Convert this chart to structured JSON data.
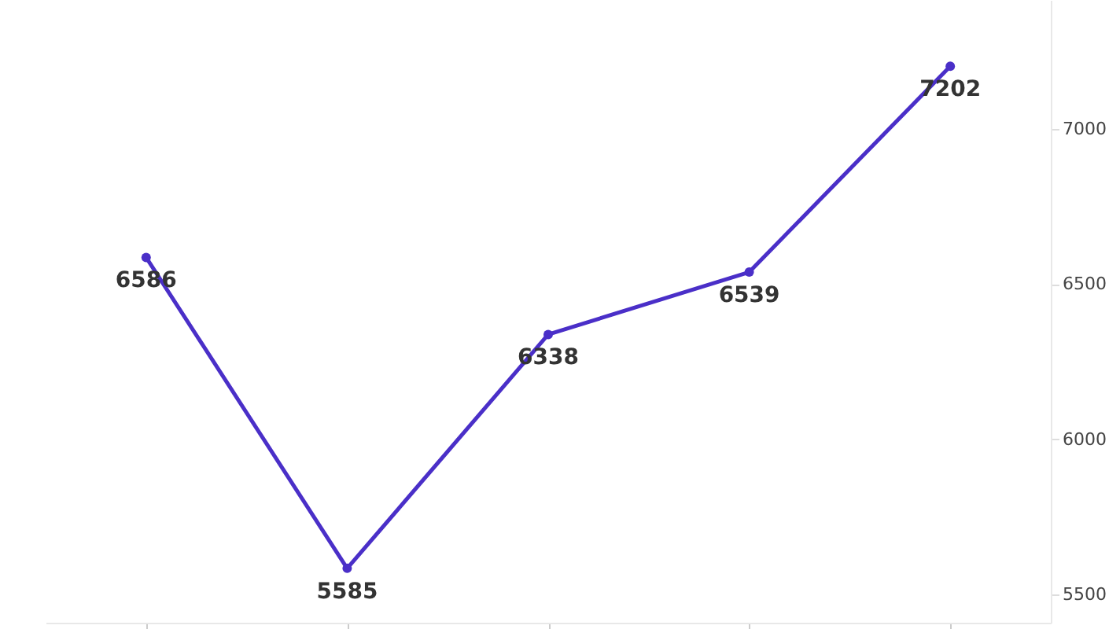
{
  "chart_data": {
    "type": "line",
    "categories": [
      null,
      null,
      null,
      null,
      null
    ],
    "series": [
      {
        "color": "#4a2fc8",
        "values": [
          6586,
          5585,
          6338,
          6539,
          7202
        ]
      }
    ],
    "ylim": [
      5410,
      7415
    ],
    "yticks": [
      5500,
      6000,
      6500,
      7000
    ],
    "grid": false,
    "marker": "circle",
    "line_style": "solid",
    "data_labels": true,
    "tick_labels": "y"
  }
}
